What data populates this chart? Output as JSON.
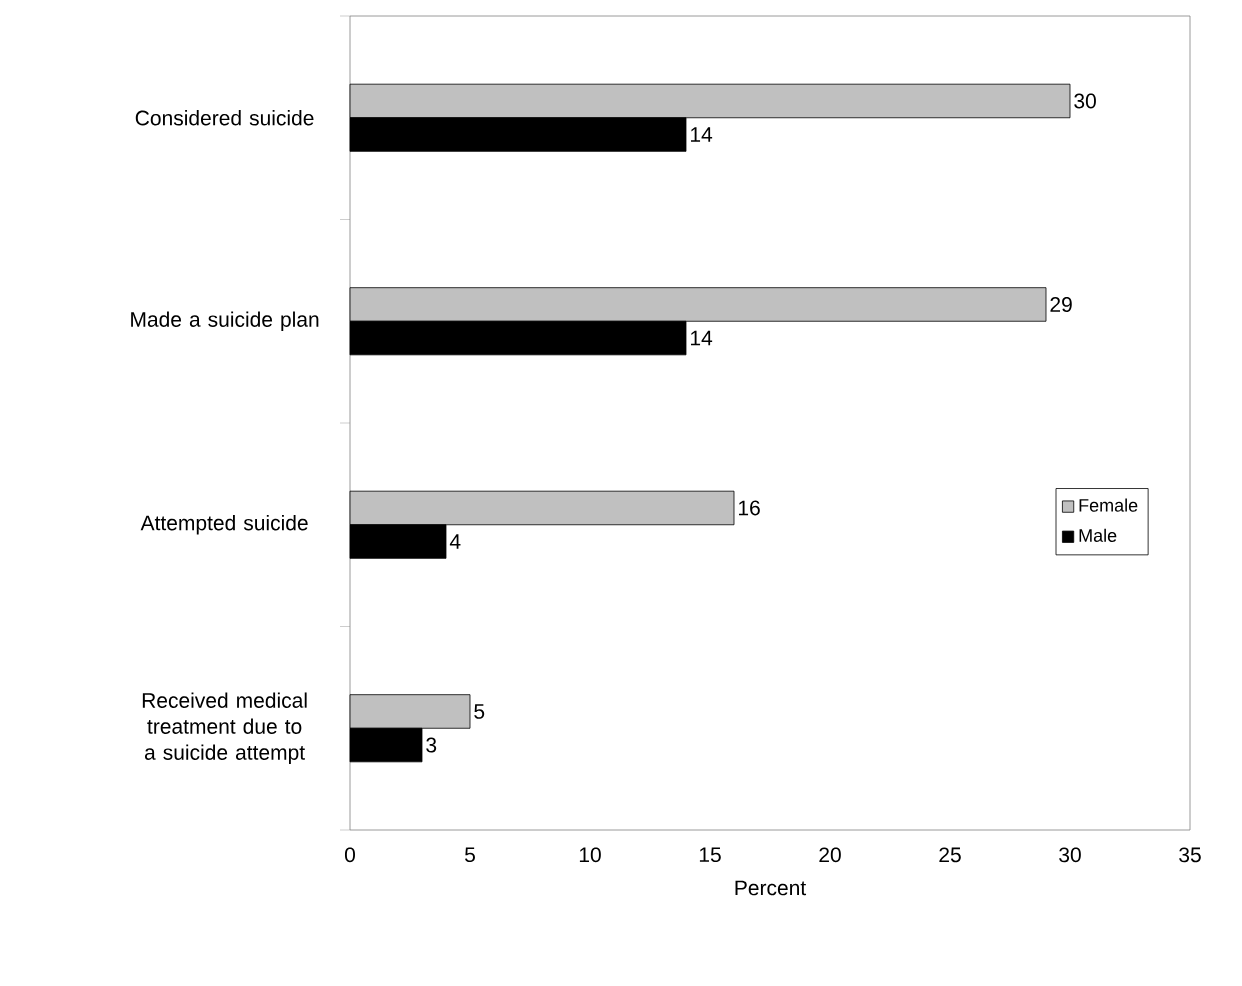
{
  "chart_data": {
    "type": "bar",
    "orientation": "horizontal",
    "xlabel": "Percent",
    "categories": [
      "Considered suicide",
      "Made a suicide plan",
      "Attempted suicide",
      "Received medical treatment due to a suicide attempt"
    ],
    "series": [
      {
        "name": "Female",
        "color": "#c0c0c0",
        "values": [
          30,
          29,
          16,
          5
        ]
      },
      {
        "name": "Male",
        "color": "#000000",
        "values": [
          14,
          14,
          4,
          3
        ]
      }
    ],
    "xlim": [
      0,
      35
    ],
    "xticks": [
      0,
      5,
      10,
      15,
      20,
      25,
      30,
      35
    ],
    "grid": false,
    "legend": "right",
    "data_labels": true
  }
}
